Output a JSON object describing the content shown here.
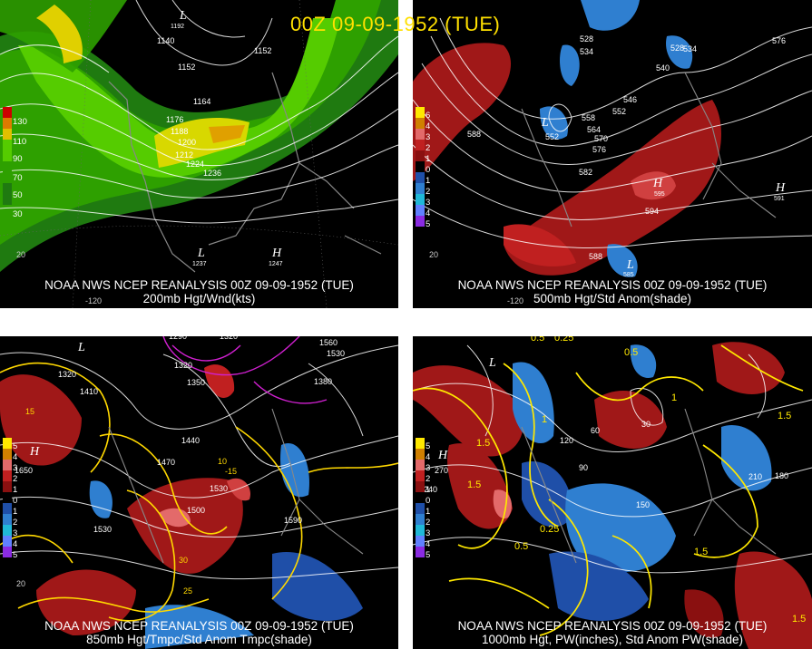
{
  "title": "00Z 09-09-1952 (TUE)",
  "panels": {
    "p1": {
      "source": "NOAA NWS NCEP REANALYSIS 00Z 09-09-1952 (TUE)",
      "field": "200mb Hgt/Wnd(kts)",
      "legend": [
        "130",
        "110",
        "90",
        "70",
        "50",
        "30"
      ],
      "legend_colors": [
        "#cc0000",
        "#dd7a00",
        "#e0c000",
        "#55cc00",
        "#2ea000",
        "#1f7a10"
      ],
      "labels": [
        "L",
        "1192",
        "1140",
        "1152",
        "1152",
        "1164",
        "1176",
        "1188",
        "1200",
        "1212",
        "1224",
        "1236",
        "L",
        "1237",
        "H",
        "1247",
        "-120",
        "20"
      ]
    },
    "p2": {
      "source": "NOAA NWS NCEP REANALYSIS 00Z 09-09-1952 (TUE)",
      "field": "500mb Hgt/Std Anom(shade)",
      "legend": [
        "6",
        "4",
        "3",
        "2",
        "1",
        "0",
        "1",
        "2",
        "3",
        "4",
        "5"
      ],
      "legend_colors": [
        "#ffe800",
        "#d08000",
        "#e36a6a",
        "#c02020",
        "#8a1010",
        "#000000",
        "#1f4fa8",
        "#2f7fd0",
        "#20b8d8",
        "#6080ff",
        "#8a2be2"
      ],
      "labels": [
        "588",
        "L",
        "552",
        "528",
        "534",
        "540",
        "546",
        "552",
        "558",
        "564",
        "570",
        "576",
        "582",
        "588",
        "594",
        "H",
        "595",
        "L",
        "585",
        "H",
        "591",
        "576",
        "528",
        "534",
        "-120",
        "20"
      ]
    },
    "p3": {
      "source": "NOAA NWS NCEP REANALYSIS 00Z 09-09-1952 (TUE)",
      "field": "850mb Hgt/Tmpc/Std Anom Tmpc(shade)",
      "legend": [
        "5",
        "4",
        "3",
        "2",
        "1",
        "0",
        "1",
        "2",
        "3",
        "4",
        "5"
      ],
      "legend_colors": [
        "#ffe800",
        "#d08000",
        "#e36a6a",
        "#c02020",
        "#8a1010",
        "#000000",
        "#1f4fa8",
        "#2f7fd0",
        "#20b8d8",
        "#6080ff",
        "#8a2be2"
      ],
      "labels": [
        "1290",
        "1320",
        "1560",
        "1530",
        "1350",
        "1320",
        "1380",
        "1410",
        "1440",
        "1470",
        "1500",
        "1530",
        "H",
        "1650",
        "1530",
        "1590",
        "L",
        "1320",
        "15",
        "10",
        "-15",
        "25",
        "30",
        "20"
      ]
    },
    "p4": {
      "source": "NOAA NWS NCEP REANALYSIS 00Z 09-09-1952 (TUE)",
      "field": "1000mb Hgt, PW(inches), Std Anom PW(shade)",
      "legend": [
        "5",
        "4",
        "3",
        "2",
        "1",
        "0",
        "1",
        "2",
        "3",
        "4",
        "5"
      ],
      "legend_colors": [
        "#ffe800",
        "#d08000",
        "#e36a6a",
        "#c02020",
        "#8a1010",
        "#000000",
        "#1f4fa8",
        "#2f7fd0",
        "#20b8d8",
        "#6080ff",
        "#8a2be2"
      ],
      "labels": [
        "0.5",
        "0.25",
        "1.5",
        "L",
        "1",
        "30",
        "60",
        "90",
        "120",
        "150",
        "180",
        "210",
        "240",
        "270",
        "H",
        "0.5",
        "1.5",
        "1",
        "0.25",
        "0.5",
        "1.5",
        "1.5",
        "1.5"
      ]
    }
  }
}
